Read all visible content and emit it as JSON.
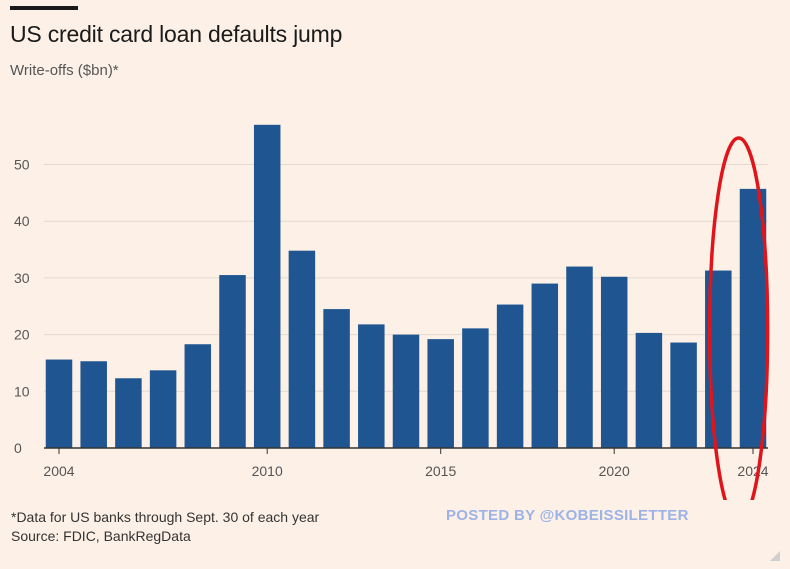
{
  "header": {
    "title": "US credit card loan defaults jump",
    "subtitle": "Write-offs ($bn)*"
  },
  "footer": {
    "note": "*Data for US banks through Sept. 30 of each year",
    "source": "Source: FDIC, BankRegData",
    "watermark": "POSTED BY @KOBEISSILETTER"
  },
  "colors": {
    "bar": "#1F5591",
    "highlight_ellipse": "#E0141B",
    "grid": "#E3D9D0",
    "baseline": "#333333",
    "background": "#FDF1E7"
  },
  "chart_data": {
    "type": "bar",
    "title": "US credit card loan defaults jump",
    "ylabel": "Write-offs ($bn)*",
    "xlabel": "",
    "x": [
      2004,
      2005,
      2006,
      2007,
      2008,
      2009,
      2010,
      2011,
      2012,
      2013,
      2014,
      2015,
      2016,
      2017,
      2018,
      2019,
      2020,
      2021,
      2022,
      2023,
      2024
    ],
    "values": [
      15.6,
      15.3,
      12.3,
      13.7,
      18.3,
      30.5,
      57.0,
      34.8,
      24.5,
      21.8,
      20.0,
      19.2,
      21.1,
      25.3,
      29.0,
      32.0,
      30.2,
      20.3,
      18.6,
      31.3,
      45.7
    ],
    "ylim": [
      0,
      60
    ],
    "yticks": [
      0,
      10,
      20,
      30,
      40,
      50
    ],
    "xticks": [
      2004,
      2010,
      2015,
      2020,
      2024
    ],
    "grid": "horizontal",
    "highlight": {
      "years": [
        2023,
        2024
      ],
      "shape": "ellipse"
    }
  }
}
